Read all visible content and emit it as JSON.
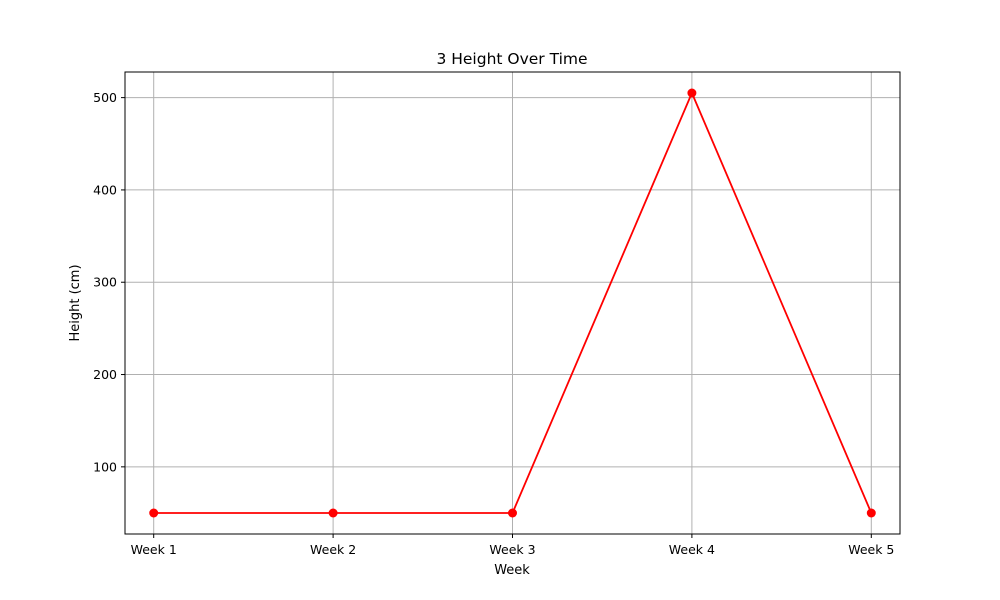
{
  "chart_data": {
    "type": "line",
    "title": "3 Height Over Time",
    "xlabel": "Week",
    "ylabel": "Height (cm)",
    "categories": [
      "Week 1",
      "Week 2",
      "Week 3",
      "Week 4",
      "Week 5"
    ],
    "series": [
      {
        "values": [
          50,
          50,
          50,
          505,
          50
        ],
        "color": "#ff0000",
        "marker": "circle"
      }
    ],
    "ylim": [
      27.25,
      527.75
    ],
    "yticks": [
      100,
      200,
      300,
      400,
      500
    ],
    "grid": true,
    "legend": "none"
  }
}
